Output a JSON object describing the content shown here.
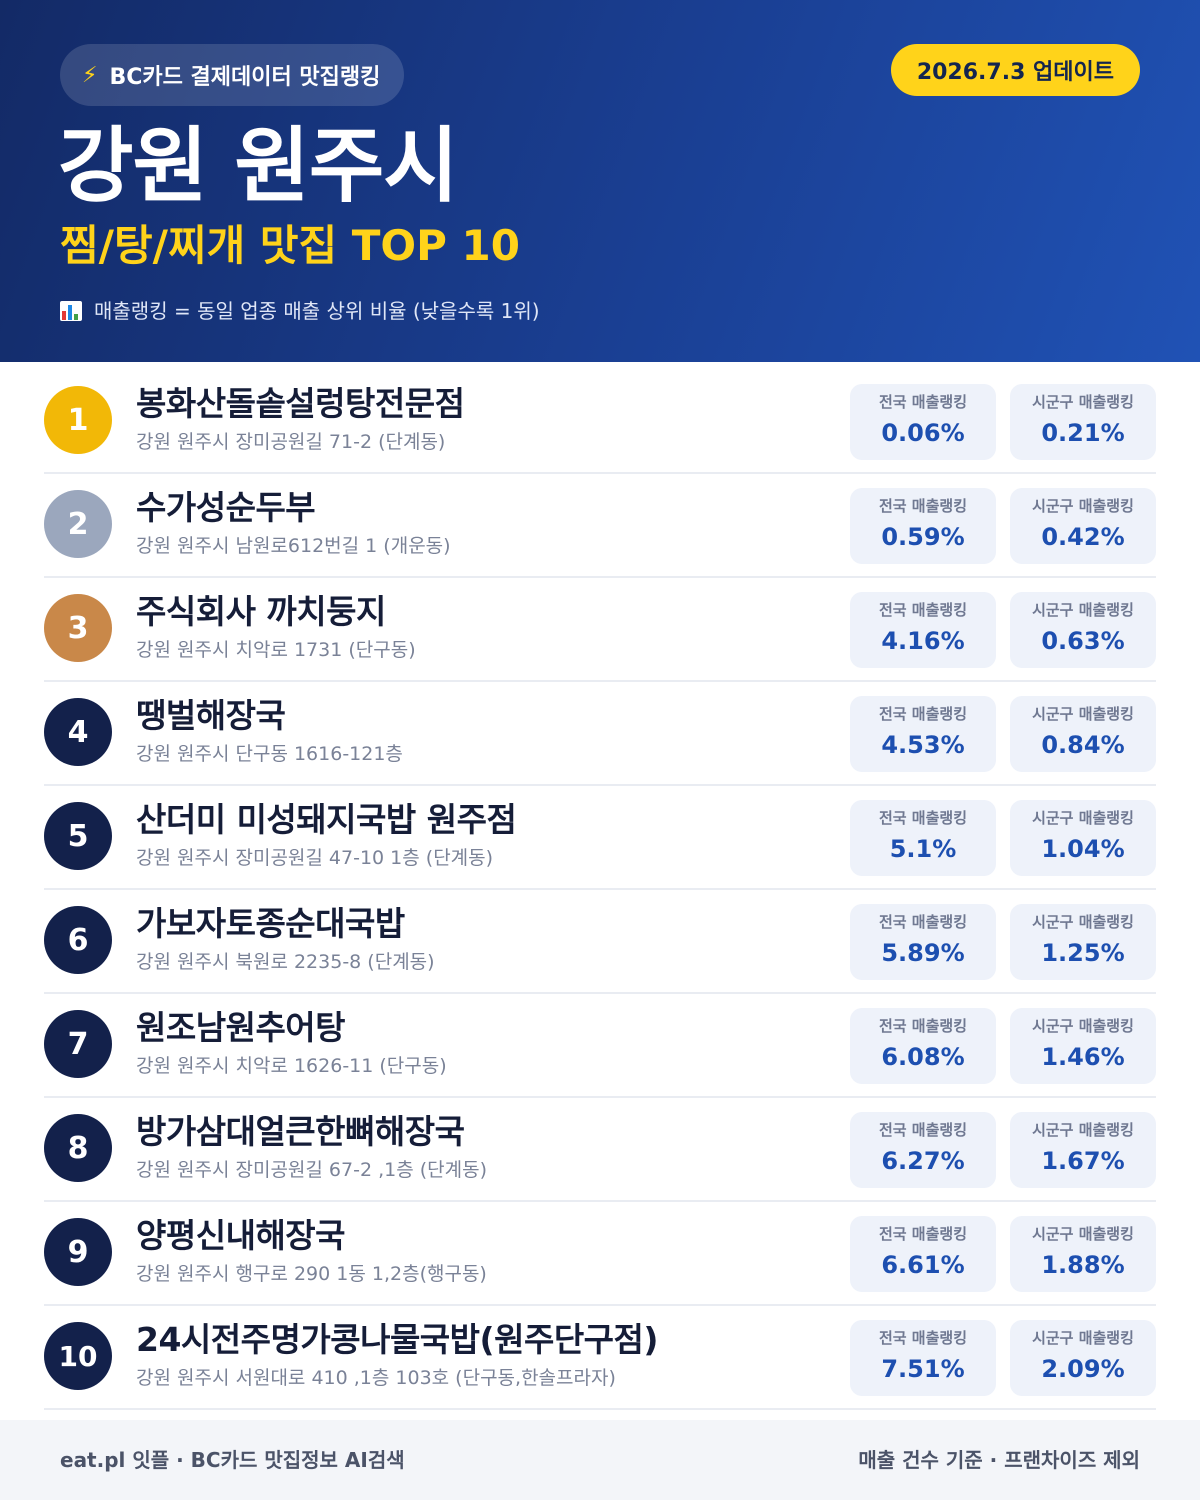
{
  "header": {
    "source_label": "BC카드 결제데이터 맛집랭킹",
    "update_label": "2026.7.3 업데이트",
    "region": "강원 원주시",
    "category": "찜/탕/찌개 맛집 TOP 10",
    "note": "매출랭킹 = 동일 업종 매출 상위 비율 (낮을수록 1위)"
  },
  "labels": {
    "national": "전국 매출랭킹",
    "local": "시군구 매출랭킹"
  },
  "restaurants": [
    {
      "rank": "1",
      "name": "봉화산돌솥설렁탕전문점",
      "address": "강원 원주시 장미공원길 71-2 (단계동)",
      "national": "0.06%",
      "local": "0.21%"
    },
    {
      "rank": "2",
      "name": "수가성순두부",
      "address": "강원 원주시 남원로612번길 1 (개운동)",
      "national": "0.59%",
      "local": "0.42%"
    },
    {
      "rank": "3",
      "name": "주식회사 까치둥지",
      "address": "강원 원주시 치악로 1731 (단구동)",
      "national": "4.16%",
      "local": "0.63%"
    },
    {
      "rank": "4",
      "name": "땡벌해장국",
      "address": "강원 원주시 단구동 1616-121층",
      "national": "4.53%",
      "local": "0.84%"
    },
    {
      "rank": "5",
      "name": "산더미 미성돼지국밥 원주점",
      "address": "강원 원주시 장미공원길 47-10 1층 (단계동)",
      "national": "5.1%",
      "local": "1.04%"
    },
    {
      "rank": "6",
      "name": "가보자토종순대국밥",
      "address": "강원 원주시 북원로 2235-8 (단계동)",
      "national": "5.89%",
      "local": "1.25%"
    },
    {
      "rank": "7",
      "name": "원조남원추어탕",
      "address": "강원 원주시 치악로 1626-11 (단구동)",
      "national": "6.08%",
      "local": "1.46%"
    },
    {
      "rank": "8",
      "name": "방가삼대얼큰한뼈해장국",
      "address": "강원 원주시 장미공원길 67-2 ,1층 (단계동)",
      "national": "6.27%",
      "local": "1.67%"
    },
    {
      "rank": "9",
      "name": "양평신내해장국",
      "address": "강원 원주시 행구로 290 1동 1,2층(행구동)",
      "national": "6.61%",
      "local": "1.88%"
    },
    {
      "rank": "10",
      "name": "24시전주명가콩나물국밥(원주단구점)",
      "address": "강원 원주시 서원대로 410 ,1층 103호 (단구동,한솔프라자)",
      "national": "7.51%",
      "local": "2.09%"
    }
  ],
  "footer": {
    "left": "eat.pl 잇플 · BC카드 맛집정보 AI검색",
    "right": "매출 건수 기준 · 프랜차이즈 제외"
  },
  "colors": {
    "header_dark": "#132a66",
    "header_light": "#2052b5",
    "accent_yellow": "#ffd31a",
    "gold": "#f2b807",
    "silver": "#9ba7bd",
    "bronze": "#c98849",
    "navy": "#13214b",
    "value_blue": "#1d4fb0"
  }
}
